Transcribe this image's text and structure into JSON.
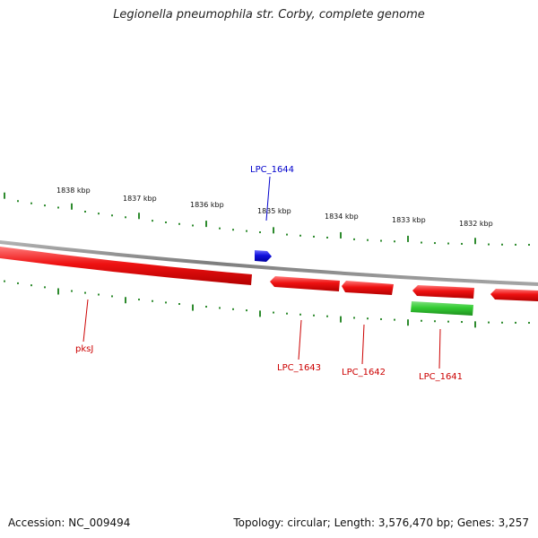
{
  "title": "Legionella pneumophila str. Corby, complete genome",
  "footer": {
    "accession": "Accession: NC_009494",
    "summary": "Topology: circular; Length: 3,576,470 bp; Genes: 3,257"
  },
  "colors": {
    "backbone": "#8a8a8a",
    "tick": "#2e8b2e",
    "gene_reverse": "#ee1111",
    "gene_forward": "#1111dd",
    "gene_other": "#33cc33",
    "label_reverse": "#cc0000",
    "label_forward": "#0000cc"
  },
  "scale_labels": [
    "1838 kbp",
    "1837 kbp",
    "1836 kbp",
    "1835 kbp",
    "1834 kbp",
    "1833 kbp",
    "1832 kbp"
  ],
  "gene_labels": {
    "forward": [
      "LPC_1644"
    ],
    "reverse": [
      "pksJ",
      "LPC_1643",
      "LPC_1642",
      "LPC_1641"
    ]
  }
}
